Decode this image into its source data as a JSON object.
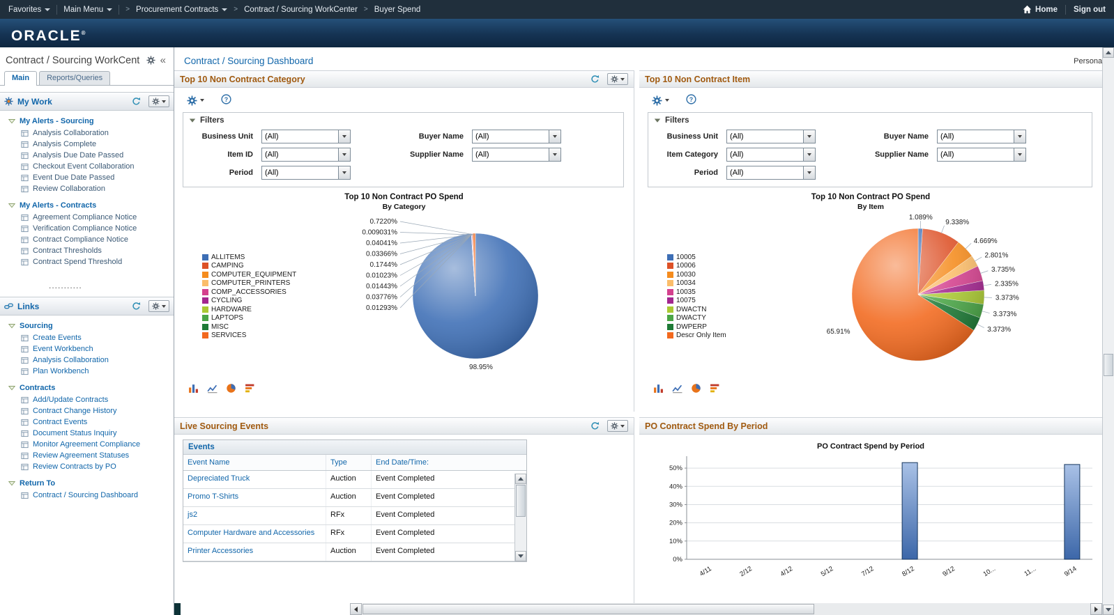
{
  "colors": {
    "accent": "#1166aa",
    "panel_title": "#a05a10",
    "topnav_bg": "#202f3c",
    "link": "#1166aa",
    "bar_fill": "#4f7ec0"
  },
  "icons": {
    "top_right": "home",
    "refresh": "circular-arrow",
    "gear": "cog",
    "help": "question-mark",
    "tree_item": "grid-page",
    "tree_expand": "triangle-down-outline",
    "chart_types": [
      "bar",
      "line",
      "pie",
      "horizontal-bar"
    ]
  },
  "topbar": {
    "favorites": "Favorites",
    "main_menu": "Main Menu",
    "breadcrumbs": [
      {
        "label": "Procurement Contracts",
        "dropdown": true
      },
      {
        "label": "Contract / Sourcing WorkCenter",
        "dropdown": false
      },
      {
        "label": "Buyer Spend",
        "dropdown": false
      }
    ],
    "home": "Home",
    "sign_out": "Sign out"
  },
  "brand": {
    "name": "ORACLE",
    "reg": "®"
  },
  "sidebar": {
    "title": "Contract / Sourcing WorkCent",
    "collapse_glyph": "«",
    "separator_dots": "...........",
    "tabs": [
      {
        "label": "Main",
        "active": true
      },
      {
        "label": "Reports/Queries",
        "active": false
      }
    ],
    "pagelets": [
      {
        "title": "My Work",
        "icon": "work",
        "style": "mywork",
        "groups": [
          {
            "title": "My Alerts - Sourcing",
            "items": [
              "Analysis Collaboration",
              "Analysis Complete",
              "Analysis Due Date Passed",
              "Checkout Event Collaboration",
              "Event Due Date Passed",
              "Review Collaboration"
            ]
          },
          {
            "title": "My Alerts - Contracts",
            "items": [
              "Agreement Compliance Notice",
              "Verification Compliance Notice",
              "Contract Compliance Notice",
              "Contract Thresholds",
              "Contract Spend Threshold"
            ]
          }
        ]
      },
      {
        "title": "Links",
        "icon": "links",
        "style": "linkspg",
        "groups": [
          {
            "title": "Sourcing",
            "items": [
              "Create Events",
              "Event Workbench",
              "Analysis Collaboration",
              "Plan Workbench"
            ]
          },
          {
            "title": "Contracts",
            "items": [
              "Add/Update Contracts",
              "Contract Change History",
              "Contract Events",
              "Document Status Inquiry",
              "Monitor Agreement Compliance",
              "Review Agreement Statuses",
              "Review Contracts by PO"
            ]
          },
          {
            "title": "Return To",
            "items": [
              "Contract / Sourcing Dashboard"
            ]
          }
        ]
      }
    ]
  },
  "main": {
    "title": "Contract / Sourcing Dashboard",
    "personalize": "Personali",
    "panel_titles": {
      "category": "Top 10 Non Contract Category",
      "item": "Top 10 Non Contract Item",
      "events": "Live Sourcing Events",
      "period": "PO Contract Spend By Period"
    },
    "filters_category": {
      "title": "Filters",
      "left": [
        {
          "label": "Business Unit",
          "value": "(All)"
        },
        {
          "label": "Item ID",
          "value": "(All)"
        },
        {
          "label": "Period",
          "value": "(All)"
        }
      ],
      "right": [
        {
          "label": "Buyer Name",
          "value": "(All)"
        },
        {
          "label": "Supplier Name",
          "value": "(All)"
        }
      ]
    },
    "filters_item": {
      "title": "Filters",
      "left": [
        {
          "label": "Business Unit",
          "value": "(All)"
        },
        {
          "label": "Item Category",
          "value": "(All)"
        },
        {
          "label": "Period",
          "value": "(All)"
        }
      ],
      "right": [
        {
          "label": "Buyer Name",
          "value": "(All)"
        },
        {
          "label": "Supplier Name",
          "value": "(All)"
        }
      ]
    },
    "events": {
      "grid_title": "Events",
      "columns": [
        "Event Name",
        "Type",
        "End Date/Time:"
      ],
      "rows": [
        {
          "event_name": "Depreciated Truck",
          "type": "Auction",
          "end": "Event Completed"
        },
        {
          "event_name": "Promo T-Shirts",
          "type": "Auction",
          "end": "Event Completed"
        },
        {
          "event_name": "js2",
          "type": "RFx",
          "end": "Event Completed"
        },
        {
          "event_name": "Computer Hardware and Accessories",
          "type": "RFx",
          "end": "Event Completed"
        },
        {
          "event_name": "Printer Accessories",
          "type": "Auction",
          "end": "Event Completed"
        }
      ]
    }
  },
  "chart_data": [
    {
      "id": "category_pie",
      "type": "pie",
      "title": "Top 10 Non Contract PO Spend",
      "subtitle": "By Category",
      "legend_position": "left",
      "categories": [
        "ALLITEMS",
        "CAMPING",
        "COMPUTER_EQUIPMENT",
        "COMPUTER_PRINTERS",
        "COMP_ACCESSORIES",
        "CYCLING",
        "HARDWARE",
        "LAPTOPS",
        "MISC",
        "SERVICES"
      ],
      "values": [
        98.95,
        0.01293,
        0.03776,
        0.01443,
        0.01023,
        0.1744,
        0.03366,
        0.04041,
        0.009031,
        0.722
      ],
      "labels": [
        "98.95%",
        "0.01293%",
        "0.03776%",
        "0.01443%",
        "0.01023%",
        "0.1744%",
        "0.03366%",
        "0.04041%",
        "0.009031%",
        "0.7220%"
      ],
      "colors": [
        "#3d6eb5",
        "#dd5127",
        "#f58c1e",
        "#fbbd6a",
        "#d4418e",
        "#a3268f",
        "#aac933",
        "#4aa546",
        "#1e7a36",
        "#f2691e"
      ]
    },
    {
      "id": "item_pie",
      "type": "pie",
      "title": "Top 10 Non Contract PO Spend",
      "subtitle": "By Item",
      "legend_position": "left",
      "categories": [
        "10005",
        "10006",
        "10030",
        "10034",
        "10035",
        "10075",
        "DWACTN",
        "DWACTY",
        "DWPERP",
        "Descr Only Item"
      ],
      "values": [
        1.089,
        9.338,
        4.669,
        2.801,
        3.735,
        2.335,
        3.373,
        3.373,
        3.373,
        65.91
      ],
      "labels": [
        "1.089%",
        "9.338%",
        "4.669%",
        "2.801%",
        "3.735%",
        "2.335%",
        "3.373%",
        "3.373%",
        "3.373%",
        "65.91%"
      ],
      "colors": [
        "#3d6eb5",
        "#dd5127",
        "#f58c1e",
        "#fbbd6a",
        "#d4418e",
        "#a3268f",
        "#aac933",
        "#4aa546",
        "#1e7a36",
        "#f2691e"
      ]
    },
    {
      "id": "period_bar",
      "type": "bar",
      "title": "PO Contract Spend by Period",
      "categories": [
        "4/11",
        "2/12",
        "4/12",
        "5/12",
        "7/12",
        "8/12",
        "9/12",
        "10...",
        "11...",
        "9/14"
      ],
      "values": [
        0,
        0,
        0,
        0,
        0,
        53,
        0,
        0,
        0,
        52
      ],
      "yticks": [
        "0%",
        "10%",
        "20%",
        "30%",
        "40%",
        "50%"
      ],
      "ylim": [
        0,
        55
      ],
      "grid": true,
      "bar_color": "#4f7ec0"
    }
  ]
}
